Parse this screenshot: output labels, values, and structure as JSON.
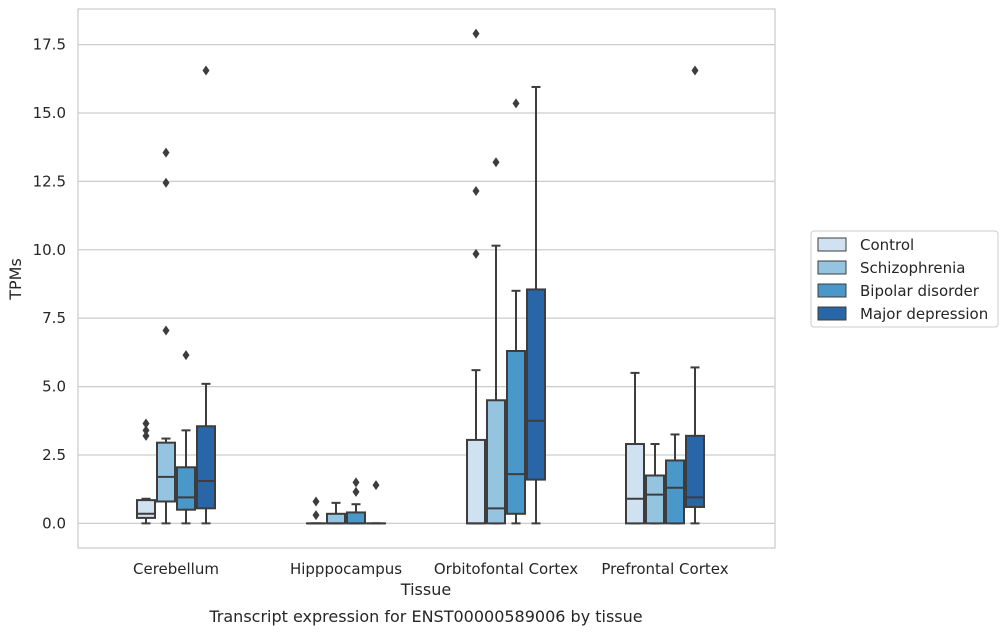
{
  "chart_data": {
    "type": "box",
    "title": "",
    "caption": "Transcript expression for ENST00000589006 by tissue",
    "xlabel": "Tissue",
    "ylabel": "TPMs",
    "ylim": [
      -0.9,
      18.8
    ],
    "yticks": [
      "0.0",
      "2.5",
      "5.0",
      "7.5",
      "10.0",
      "12.5",
      "15.0",
      "17.5"
    ],
    "ytick_values": [
      0,
      2.5,
      5,
      7.5,
      10,
      12.5,
      15,
      17.5
    ],
    "grid": "horizontal",
    "legend_position": "right",
    "categories": [
      "Cerebellum",
      "Hipppocampus",
      "Orbitofontal Cortex",
      "Prefrontal Cortex"
    ],
    "series": [
      {
        "name": "Control",
        "color": "#d0e1f2",
        "boxes": [
          {
            "whislo": 0.0,
            "q1": 0.2,
            "med": 0.35,
            "q3": 0.85,
            "whishi": 0.9,
            "fliers": [
              3.2,
              3.4,
              3.65
            ]
          },
          {
            "whislo": 0.0,
            "q1": 0.0,
            "med": 0.0,
            "q3": 0.0,
            "whishi": 0.0,
            "fliers": [
              0.3,
              0.8
            ]
          },
          {
            "whislo": 0.0,
            "q1": 0.0,
            "med": 0.0,
            "q3": 3.05,
            "whishi": 5.6,
            "fliers": [
              9.85,
              12.15,
              17.9
            ]
          },
          {
            "whislo": 0.0,
            "q1": 0.0,
            "med": 0.9,
            "q3": 2.9,
            "whishi": 5.5,
            "fliers": []
          }
        ]
      },
      {
        "name": "Schizophrenia",
        "color": "#94c4df",
        "boxes": [
          {
            "whislo": 0.0,
            "q1": 0.8,
            "med": 1.7,
            "q3": 2.95,
            "whishi": 3.1,
            "fliers": [
              7.05,
              12.45,
              13.55
            ]
          },
          {
            "whislo": 0.0,
            "q1": 0.0,
            "med": 0.0,
            "q3": 0.35,
            "whishi": 0.75,
            "fliers": []
          },
          {
            "whislo": 0.0,
            "q1": 0.0,
            "med": 0.55,
            "q3": 4.5,
            "whishi": 10.15,
            "fliers": [
              13.2
            ]
          },
          {
            "whislo": 0.0,
            "q1": 0.0,
            "med": 1.05,
            "q3": 1.75,
            "whishi": 2.9,
            "fliers": []
          }
        ]
      },
      {
        "name": "Bipolar disorder",
        "color": "#4a98c9",
        "boxes": [
          {
            "whislo": 0.0,
            "q1": 0.5,
            "med": 0.95,
            "q3": 2.05,
            "whishi": 3.4,
            "fliers": [
              6.15
            ]
          },
          {
            "whislo": 0.0,
            "q1": 0.0,
            "med": 0.0,
            "q3": 0.4,
            "whishi": 0.7,
            "fliers": [
              1.15,
              1.5
            ]
          },
          {
            "whislo": 0.0,
            "q1": 0.35,
            "med": 1.8,
            "q3": 6.3,
            "whishi": 8.5,
            "fliers": [
              15.35
            ]
          },
          {
            "whislo": 0.0,
            "q1": 0.0,
            "med": 1.3,
            "q3": 2.3,
            "whishi": 3.25,
            "fliers": []
          }
        ]
      },
      {
        "name": "Major depression",
        "color": "#2866a8",
        "boxes": [
          {
            "whislo": 0.0,
            "q1": 0.55,
            "med": 1.55,
            "q3": 3.55,
            "whishi": 5.1,
            "fliers": [
              16.55
            ]
          },
          {
            "whislo": 0.0,
            "q1": 0.0,
            "med": 0.0,
            "q3": 0.0,
            "whishi": 0.0,
            "fliers": [
              1.4
            ]
          },
          {
            "whislo": 0.0,
            "q1": 1.6,
            "med": 3.75,
            "q3": 8.55,
            "whishi": 15.95,
            "fliers": []
          },
          {
            "whislo": 0.0,
            "q1": 0.6,
            "med": 0.95,
            "q3": 3.2,
            "whishi": 5.7,
            "fliers": [
              16.55
            ]
          }
        ]
      }
    ]
  }
}
